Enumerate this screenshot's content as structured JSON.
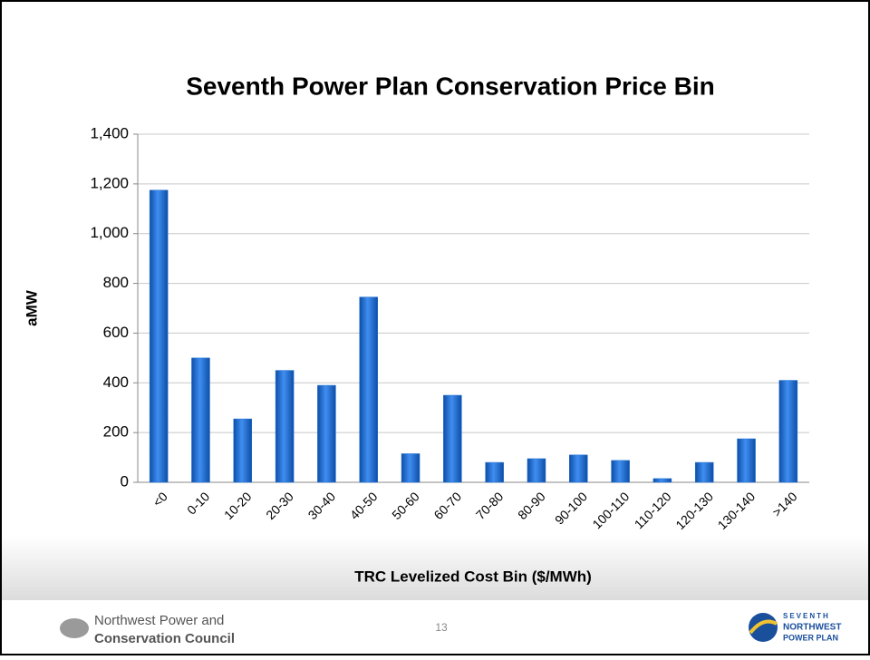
{
  "chart_data": {
    "type": "bar",
    "title": "Seventh Power Plan Conservation Price Bin",
    "y_label": "aMW",
    "x_label": "TRC Levelized Cost Bin ($/MWh)",
    "categories": [
      "<0",
      "0-10",
      "10-20",
      "20-30",
      "30-40",
      "40-50",
      "50-60",
      "60-70",
      "70-80",
      "80-90",
      "90-100",
      "100-110",
      "110-120",
      "120-130",
      "130-140",
      ">140"
    ],
    "values": [
      1175,
      500,
      255,
      450,
      390,
      745,
      115,
      350,
      80,
      95,
      110,
      88,
      15,
      80,
      175,
      410
    ],
    "color": "#1f6fd0",
    "ylim": [
      0,
      1400
    ],
    "yticks": [
      0,
      200,
      400,
      600,
      800,
      {
        "value": 1000,
        "label": "1,000"
      },
      {
        "value": 1200,
        "label": "1,200"
      },
      {
        "value": 1400,
        "label": "1,400"
      }
    ],
    "grid": true
  },
  "footer": {
    "org_line1": "Northwest Power and",
    "org_line2": "Conservation Council",
    "page_number": "13",
    "plan_line1": "SEVENTH",
    "plan_line2": "NORTHWEST",
    "plan_line3": "POWER PLAN"
  }
}
